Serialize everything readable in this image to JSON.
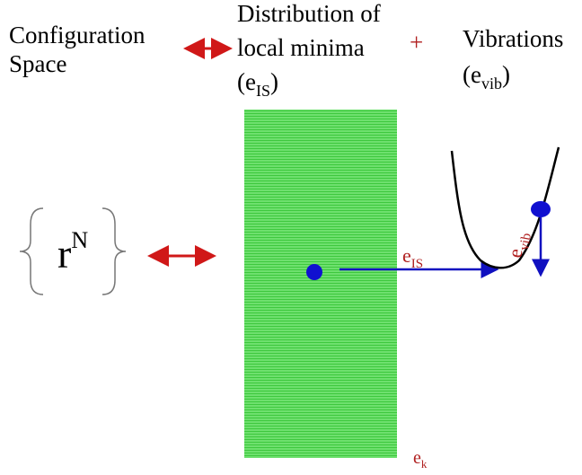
{
  "header": {
    "left": [
      "Configuration",
      "Space"
    ],
    "middle": [
      "Distribution of",
      "local minima"
    ],
    "middle_sym": {
      "prefix": "(e",
      "sub": "IS",
      "suffix": ")"
    },
    "plus": "+",
    "right": "Vibrations",
    "right_sym": {
      "prefix": "(e",
      "sub": "vib",
      "suffix": ")"
    }
  },
  "config": {
    "base": "r",
    "sup": "N"
  },
  "labels": {
    "eis": {
      "base": "e",
      "sub": "IS"
    },
    "evib": {
      "base": "e",
      "sub": "vib"
    },
    "ek": {
      "base": "e",
      "sub": "k"
    }
  }
}
